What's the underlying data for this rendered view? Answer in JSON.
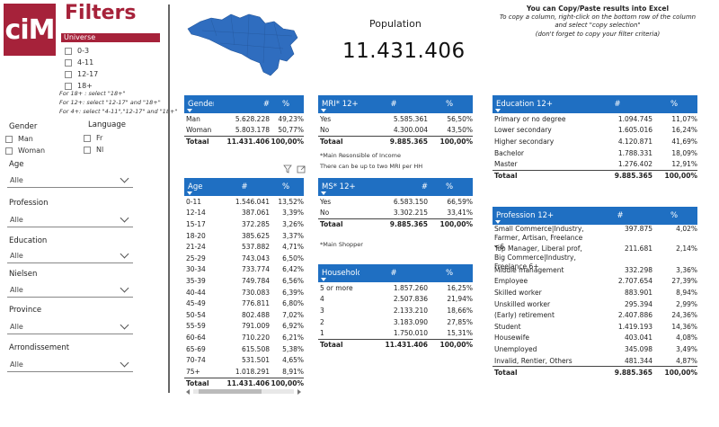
{
  "logo": {
    "text": "ciM",
    "color": "#a6223a"
  },
  "filters": {
    "title": "Filters",
    "universe": {
      "label": "Universe",
      "options": [
        "0-3",
        "4-11",
        "12-17",
        "18+"
      ],
      "hints": [
        "For 18+ : select \"18+\"",
        "For 12+: select \"12-17\" and \"18+\"",
        "For 4+: select \"4-11\",\"12-17\" and \"18+\""
      ]
    },
    "gender": {
      "label": "Gender",
      "options": [
        "Man",
        "Woman"
      ]
    },
    "language": {
      "label": "Language",
      "options": [
        "Fr",
        "Nl"
      ]
    },
    "dropdowns": [
      {
        "label": "Age",
        "value": "Alle"
      },
      {
        "label": "Profession",
        "value": "Alle"
      },
      {
        "label": "Education",
        "value": "Alle"
      },
      {
        "label": "Nielsen",
        "value": "Alle"
      },
      {
        "label": "Province",
        "value": "Alle"
      },
      {
        "label": "Arrondissement",
        "value": "Alle"
      }
    ]
  },
  "population": {
    "label": "Population",
    "value": "11.431.406"
  },
  "info": {
    "line1": "You can Copy/Paste results into Excel",
    "line2": "To copy a column, right-click on the bottom row of the column",
    "line3": "and select \"copy selection\"",
    "line4": "(don't forget to copy your filter criteria)"
  },
  "map": {
    "color": "#2f6dbf",
    "label": "Belgium map"
  },
  "tables": {
    "gender": {
      "headers": [
        "Gender",
        "#",
        "%"
      ],
      "rows": [
        [
          "Man",
          "5.628.228",
          "49,23%"
        ],
        [
          "Woman",
          "5.803.178",
          "50,77%"
        ]
      ],
      "total": [
        "Totaal",
        "11.431.406",
        "100,00%"
      ]
    },
    "age": {
      "headers": [
        "Age",
        "#",
        "%"
      ],
      "rows": [
        [
          "0-11",
          "1.546.041",
          "13,52%"
        ],
        [
          "12-14",
          "387.061",
          "3,39%"
        ],
        [
          "15-17",
          "372.285",
          "3,26%"
        ],
        [
          "18-20",
          "385.625",
          "3,37%"
        ],
        [
          "21-24",
          "537.882",
          "4,71%"
        ],
        [
          "25-29",
          "743.043",
          "6,50%"
        ],
        [
          "30-34",
          "733.774",
          "6,42%"
        ],
        [
          "35-39",
          "749.784",
          "6,56%"
        ],
        [
          "40-44",
          "730.083",
          "6,39%"
        ],
        [
          "45-49",
          "776.811",
          "6,80%"
        ],
        [
          "50-54",
          "802.488",
          "7,02%"
        ],
        [
          "55-59",
          "791.009",
          "6,92%"
        ],
        [
          "60-64",
          "710.220",
          "6,21%"
        ],
        [
          "65-69",
          "615.508",
          "5,38%"
        ],
        [
          "70-74",
          "531.501",
          "4,65%"
        ],
        [
          "75+",
          "1.018.291",
          "8,91%"
        ]
      ],
      "total": [
        "Totaal",
        "11.431.406",
        "100,00%"
      ]
    },
    "mri": {
      "headers": [
        "MRI* 12+",
        "#",
        "%"
      ],
      "rows": [
        [
          "Yes",
          "5.585.361",
          "56,50%"
        ],
        [
          "No",
          "4.300.004",
          "43,50%"
        ]
      ],
      "total": [
        "Totaal",
        "9.885.365",
        "100,00%"
      ],
      "notes": [
        "*Main Resonsible of Income",
        "There can be up to two MRI per HH"
      ]
    },
    "ms": {
      "headers": [
        "MS* 12+",
        "#",
        "%"
      ],
      "rows": [
        [
          "Yes",
          "6.583.150",
          "66,59%"
        ],
        [
          "No",
          "3.302.215",
          "33,41%"
        ]
      ],
      "total": [
        "Totaal",
        "9.885.365",
        "100,00%"
      ],
      "notes": [
        "*Main Shopper"
      ]
    },
    "household": {
      "headers": [
        "Household size",
        "#",
        "%"
      ],
      "rows": [
        [
          "5 or more",
          "1.857.260",
          "16,25%"
        ],
        [
          "4",
          "2.507.836",
          "21,94%"
        ],
        [
          "3",
          "2.133.210",
          "18,66%"
        ],
        [
          "2",
          "3.183.090",
          "27,85%"
        ],
        [
          "1",
          "1.750.010",
          "15,31%"
        ]
      ],
      "total": [
        "Totaal",
        "11.431.406",
        "100,00%"
      ]
    },
    "education": {
      "headers": [
        "Education 12+",
        "#",
        "%"
      ],
      "rows": [
        [
          "Primary or no degree",
          "1.094.745",
          "11,07%"
        ],
        [
          "Lower secondary",
          "1.605.016",
          "16,24%"
        ],
        [
          "Higher secondary",
          "4.120.871",
          "41,69%"
        ],
        [
          "Bachelor",
          "1.788.331",
          "18,09%"
        ],
        [
          "Master",
          "1.276.402",
          "12,91%"
        ]
      ],
      "total": [
        "Totaal",
        "9.885.365",
        "100,00%"
      ]
    },
    "profession": {
      "headers": [
        "Profession 12+",
        "#",
        "%"
      ],
      "rows": [
        [
          "Small Commerce|Industry, Farmer, Artisan, Freelance <6",
          "397.875",
          "4,02%"
        ],
        [
          "Top Manager, Liberal prof, Big Commerce|Industry, Freelance 6+",
          "211.681",
          "2,14%"
        ],
        [
          "Middle management",
          "332.298",
          "3,36%"
        ],
        [
          "Employee",
          "2.707.654",
          "27,39%"
        ],
        [
          "Skilled worker",
          "883.901",
          "8,94%"
        ],
        [
          "Unskilled worker",
          "295.394",
          "2,99%"
        ],
        [
          "(Early) retirement",
          "2.407.886",
          "24,36%"
        ],
        [
          "Student",
          "1.419.193",
          "14,36%"
        ],
        [
          "Housewife",
          "403.041",
          "4,08%"
        ],
        [
          "Unemployed",
          "345.098",
          "3,49%"
        ],
        [
          "Invalid, Rentier, Others",
          "481.344",
          "4,87%"
        ]
      ],
      "total": [
        "Totaal",
        "9.885.365",
        "100,00%"
      ]
    }
  },
  "header_color": "#1f6fc2"
}
